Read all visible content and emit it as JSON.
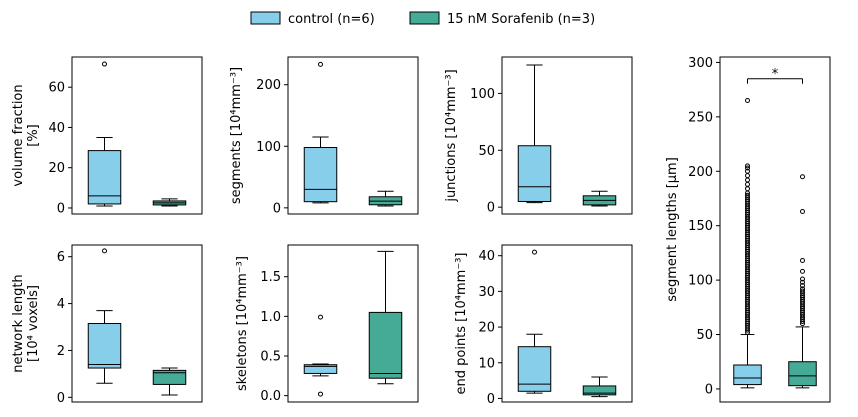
{
  "legend": {
    "entries": [
      {
        "label": "control (n=6)",
        "color": "#87CEEB"
      },
      {
        "label": "15 nM Sorafenib (n=3)",
        "color": "#45AA96"
      }
    ]
  },
  "chart_data": [
    {
      "id": "volume-fraction",
      "type": "box",
      "ylabel_lines": [
        "volume fraction",
        "[%]"
      ],
      "ylim": [
        -3,
        75
      ],
      "yticks": [
        0,
        20,
        40,
        60
      ],
      "groups": [
        {
          "name": "control (n=6)",
          "whislo": 1,
          "q1": 2,
          "med": 6,
          "q3": 28.5,
          "whishi": 35,
          "fliers": [
            71.5
          ]
        },
        {
          "name": "15 nM Sorafenib (n=3)",
          "whislo": 1,
          "q1": 1.5,
          "med": 2.5,
          "q3": 3.5,
          "whishi": 4.5,
          "fliers": []
        }
      ]
    },
    {
      "id": "segments",
      "type": "box",
      "ylabel_lines": [
        "segments [10⁴mm⁻³]"
      ],
      "ylim": [
        -10,
        245
      ],
      "yticks": [
        0,
        100,
        200
      ],
      "groups": [
        {
          "name": "control (n=6)",
          "whislo": 8,
          "q1": 10,
          "med": 30,
          "q3": 98,
          "whishi": 115,
          "fliers": [
            233
          ]
        },
        {
          "name": "15 nM Sorafenib (n=3)",
          "whislo": 3,
          "q1": 5,
          "med": 11,
          "q3": 18,
          "whishi": 27,
          "fliers": []
        }
      ]
    },
    {
      "id": "junctions",
      "type": "box",
      "ylabel_lines": [
        "junctions [10⁴mm⁻³]"
      ],
      "ylim": [
        -6,
        132
      ],
      "yticks": [
        0,
        50,
        100
      ],
      "groups": [
        {
          "name": "control (n=6)",
          "whislo": 4,
          "q1": 5,
          "med": 18,
          "q3": 54,
          "whishi": 125,
          "fliers": []
        },
        {
          "name": "15 nM Sorafenib (n=3)",
          "whislo": 1,
          "q1": 2,
          "med": 6,
          "q3": 10,
          "whishi": 14,
          "fliers": []
        }
      ]
    },
    {
      "id": "network-length",
      "type": "box",
      "ylabel_lines": [
        "network length",
        "[10⁴ voxels]"
      ],
      "ylim": [
        -0.2,
        6.5
      ],
      "yticks": [
        0,
        2,
        4,
        6
      ],
      "groups": [
        {
          "name": "control (n=6)",
          "whislo": 0.6,
          "q1": 1.25,
          "med": 1.4,
          "q3": 3.15,
          "whishi": 3.7,
          "fliers": [
            6.25
          ]
        },
        {
          "name": "15 nM Sorafenib (n=3)",
          "whislo": 0.1,
          "q1": 0.55,
          "med": 1.05,
          "q3": 1.15,
          "whishi": 1.25,
          "fliers": []
        }
      ]
    },
    {
      "id": "skeletons",
      "type": "box",
      "ylabel_lines": [
        "skeletons [10⁴mm⁻³]"
      ],
      "ylim": [
        -0.08,
        1.9
      ],
      "yticks": [
        0.0,
        0.5,
        1.0,
        1.5
      ],
      "ytick_labels": [
        "0.0",
        "0.5",
        "1.0",
        "1.5"
      ],
      "groups": [
        {
          "name": "control (n=6)",
          "whislo": 0.25,
          "q1": 0.28,
          "med": 0.37,
          "q3": 0.39,
          "whishi": 0.4,
          "fliers": [
            0.02,
            0.99
          ]
        },
        {
          "name": "15 nM Sorafenib (n=3)",
          "whislo": 0.15,
          "q1": 0.22,
          "med": 0.28,
          "q3": 1.05,
          "whishi": 1.82,
          "fliers": []
        }
      ]
    },
    {
      "id": "end-points",
      "type": "box",
      "ylabel_lines": [
        "end points [10⁴mm⁻³]"
      ],
      "ylim": [
        -1,
        43
      ],
      "yticks": [
        0,
        10,
        20,
        30,
        40
      ],
      "groups": [
        {
          "name": "control (n=6)",
          "whislo": 1.5,
          "q1": 2,
          "med": 4,
          "q3": 14.5,
          "whishi": 18,
          "fliers": [
            41
          ]
        },
        {
          "name": "15 nM Sorafenib (n=3)",
          "whislo": 0.5,
          "q1": 1,
          "med": 1.5,
          "q3": 3.5,
          "whishi": 6,
          "fliers": []
        }
      ]
    },
    {
      "id": "segment-lengths",
      "type": "box",
      "ylabel_lines": [
        "segment lengths [µm]"
      ],
      "ylim": [
        -12,
        305
      ],
      "yticks": [
        0,
        50,
        100,
        150,
        200,
        250,
        300
      ],
      "significance": {
        "label": "*",
        "y": 285
      },
      "groups": [
        {
          "name": "control (n=6)",
          "whislo": 1,
          "q1": 4,
          "med": 10,
          "q3": 22,
          "whishi": 50,
          "fliers": [
            52,
            54,
            56,
            58,
            60,
            62,
            64,
            66,
            68,
            70,
            72,
            74,
            76,
            78,
            80,
            82,
            84,
            86,
            88,
            90,
            92,
            94,
            96,
            98,
            100,
            102,
            104,
            106,
            108,
            110,
            112,
            114,
            116,
            118,
            120,
            122,
            124,
            126,
            128,
            130,
            132,
            134,
            136,
            138,
            140,
            142,
            144,
            146,
            148,
            150,
            152,
            154,
            156,
            158,
            160,
            162,
            164,
            166,
            168,
            170,
            172,
            174,
            176,
            178,
            180,
            184,
            188,
            192,
            196,
            200,
            203,
            205,
            265
          ]
        },
        {
          "name": "15 nM Sorafenib (n=3)",
          "whislo": 1,
          "q1": 3,
          "med": 12,
          "q3": 25,
          "whishi": 57,
          "fliers": [
            60,
            62,
            64,
            66,
            68,
            70,
            72,
            74,
            76,
            78,
            80,
            82,
            84,
            86,
            88,
            90,
            92,
            95,
            98,
            101,
            108,
            118,
            163,
            195
          ]
        }
      ]
    }
  ]
}
